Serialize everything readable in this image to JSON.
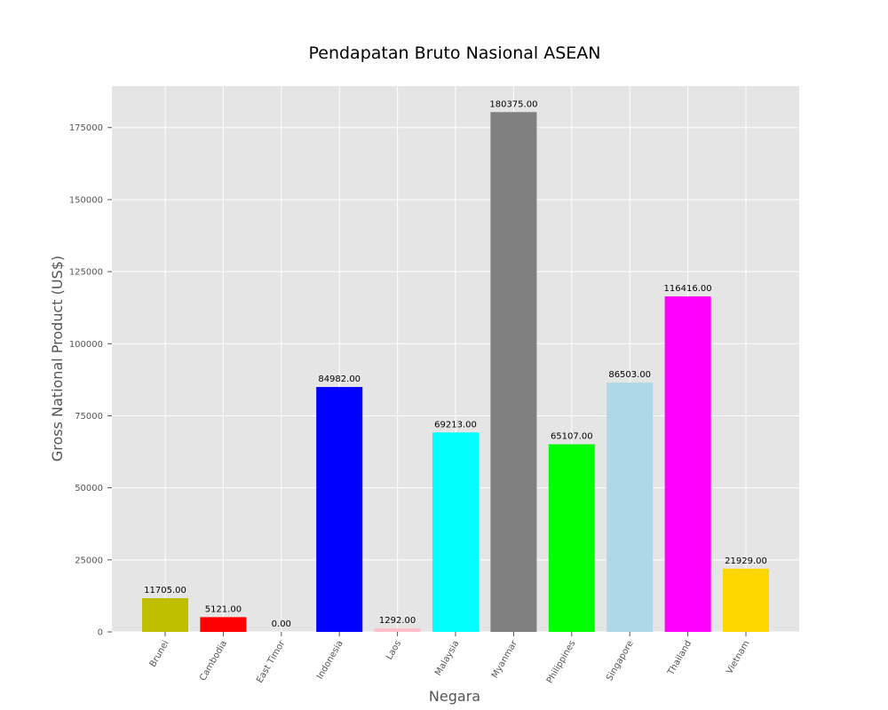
{
  "chart_data": {
    "type": "bar",
    "title": "Pendapatan Bruto Nasional ASEAN",
    "xlabel": "Negara",
    "ylabel": "Gross National Product (US$)",
    "categories": [
      "Brunei",
      "Cambodia",
      "East Timor",
      "Indonesia",
      "Laos",
      "Malaysia",
      "Myanmar",
      "Philippines",
      "Singapore",
      "Thailand",
      "Vietnam"
    ],
    "values": [
      11705,
      5121,
      0,
      84982,
      1292,
      69213,
      180375,
      65107,
      86503,
      116416,
      21929
    ],
    "value_labels": [
      "11705.00",
      "5121.00",
      "0.00",
      "84982.00",
      "1292.00",
      "69213.00",
      "180375.00",
      "65107.00",
      "86503.00",
      "116416.00",
      "21929.00"
    ],
    "colors": [
      "#bfbf00",
      "#ff0000",
      "#000000",
      "#0000ff",
      "#ffc0cb",
      "#00ffff",
      "#808080",
      "#00ff00",
      "#add8e6",
      "#ff00ff",
      "#ffd700"
    ],
    "yticks": [
      0,
      25000,
      50000,
      75000,
      100000,
      125000,
      150000,
      175000
    ],
    "ytick_labels": [
      "0",
      "25000",
      "50000",
      "75000",
      "100000",
      "125000",
      "150000",
      "175000"
    ],
    "ylim": [
      0,
      189394
    ],
    "grid": true,
    "background": "#e5e5e5",
    "grid_color": "#ffffff"
  }
}
